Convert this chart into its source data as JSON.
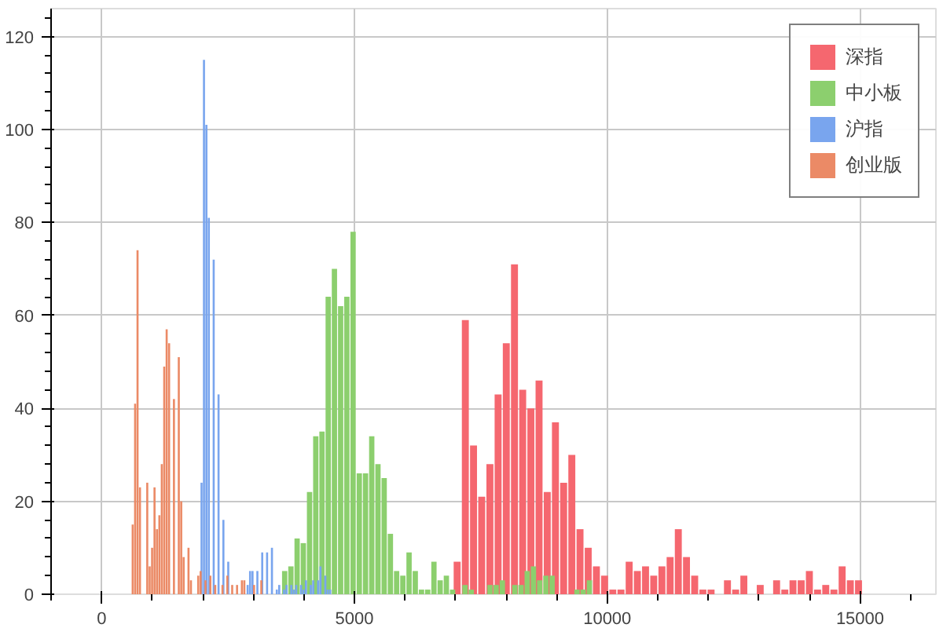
{
  "chart_data": {
    "type": "bar",
    "xlim": [
      -1000,
      16500
    ],
    "xticks": [
      0,
      5000,
      10000,
      15000
    ],
    "ylim": [
      0,
      126
    ],
    "yticks": [
      0,
      20,
      40,
      60,
      80,
      100,
      120
    ],
    "grid": true,
    "legend": "top right",
    "series": [
      {
        "name": "深指",
        "color": "#f5676f",
        "x": [
          7031,
          7193,
          7355,
          7517,
          7679,
          7841,
          8003,
          8165,
          8327,
          8489,
          8651,
          8813,
          8975,
          9137,
          9299,
          9461,
          9623,
          9785,
          9947,
          10109,
          10271,
          10433,
          10595,
          10757,
          10919,
          11081,
          11243,
          11405,
          11567,
          11729,
          11891,
          12053,
          12215,
          12377,
          12539,
          12701,
          12863,
          13025,
          13187,
          13349,
          13511,
          13673,
          13835,
          13997,
          14159,
          14321,
          14483,
          14645,
          14807,
          14969
        ],
        "values": [
          7,
          59,
          32,
          21,
          28,
          43,
          54,
          71,
          44,
          40,
          46,
          22,
          37,
          24,
          30,
          14,
          10,
          6,
          4,
          1,
          1,
          7,
          5,
          6,
          4,
          6,
          8,
          14,
          8,
          4,
          1,
          1,
          0,
          3,
          1,
          4,
          0,
          2,
          0,
          3,
          1,
          3,
          3,
          5,
          1,
          2,
          1,
          6,
          3,
          3
        ]
      },
      {
        "name": "中小板",
        "color": "#8ccf6e",
        "x": [
          3620,
          3743,
          3866,
          3989,
          4112,
          4235,
          4358,
          4481,
          4604,
          4727,
          4850,
          4973,
          5096,
          5219,
          5342,
          5465,
          5588,
          5711,
          5834,
          5957,
          6080,
          6203,
          6326,
          6449,
          6572,
          6695,
          6818,
          6941,
          7064,
          7187,
          7310,
          7433,
          7556,
          7679,
          7802,
          7925,
          8048,
          8171,
          8294,
          8417,
          8540,
          8663,
          8786,
          8909,
          9032,
          9155,
          9278,
          9401,
          9524,
          9647
        ],
        "values": [
          5,
          6,
          12,
          11,
          22,
          34,
          35,
          64,
          70,
          62,
          64,
          78,
          26,
          26,
          34,
          28,
          25,
          13,
          5,
          4,
          9,
          5,
          1,
          1,
          7,
          3,
          4,
          1,
          null,
          2,
          1,
          0,
          0,
          2,
          2,
          3,
          0,
          2,
          2,
          5,
          6,
          3,
          4,
          4,
          0,
          0,
          0,
          1,
          1,
          3
        ]
      },
      {
        "name": "沪指",
        "color": "#79a5ee",
        "x": [
          1976,
          2024,
          2072,
          2120,
          2168,
          2216,
          2264,
          2312,
          2360,
          2408,
          2456,
          2504,
          2552,
          2600,
          2648,
          2696,
          2744,
          2792,
          2840,
          2888,
          2936,
          2984,
          3032,
          3080,
          3128,
          3176,
          3224,
          3272,
          3320,
          3368,
          3416,
          3464,
          3512,
          3560,
          3608,
          3656,
          3704,
          3752,
          3800,
          3848,
          3896,
          3944,
          3992,
          4040,
          4088,
          4136,
          4184,
          4232,
          4280,
          4328,
          4376,
          4424,
          4472,
          4520
        ],
        "values": [
          24,
          115,
          101,
          81,
          0,
          72,
          0,
          43,
          0,
          16,
          0,
          7,
          0,
          0,
          0,
          0,
          0,
          null,
          0,
          2,
          5,
          5,
          0,
          5,
          0,
          9,
          0,
          9,
          0,
          10,
          0,
          1,
          2,
          0,
          1,
          2,
          0,
          2,
          1,
          2,
          0,
          2,
          1,
          3,
          0,
          2,
          3,
          0,
          3,
          6,
          0,
          4,
          1,
          1
        ]
      },
      {
        "name": "创业版",
        "color": "#eb8a66",
        "x": [
          614,
          662,
          710,
          758,
          806,
          854,
          902,
          950,
          998,
          1046,
          1094,
          1142,
          1190,
          1238,
          1286,
          1334,
          1382,
          1430,
          1478,
          1526,
          1574,
          1622,
          1670,
          1718,
          1766,
          1814,
          1862,
          1910,
          1958,
          2006,
          2054,
          2102,
          2150,
          2198,
          2246,
          2294,
          2342,
          2390,
          2438,
          2486,
          2534,
          2582,
          2630,
          2678,
          2726,
          2774,
          2822,
          2870,
          2918,
          2966,
          3014,
          3062,
          3110,
          3158
        ],
        "values": [
          15,
          41,
          74,
          23,
          0,
          0,
          24,
          6,
          10,
          23,
          14,
          17,
          28,
          49,
          57,
          54,
          0,
          42,
          0,
          51,
          20,
          8,
          0,
          10,
          3,
          0,
          0,
          4,
          5,
          0,
          3,
          0,
          4,
          0,
          2,
          0,
          0,
          2,
          0,
          4,
          0,
          2,
          0,
          2,
          0,
          3,
          3,
          0,
          0,
          0,
          2,
          0,
          0,
          3
        ]
      }
    ]
  }
}
